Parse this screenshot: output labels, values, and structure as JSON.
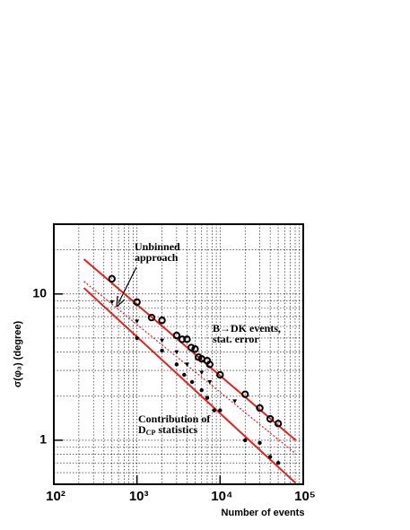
{
  "chart_data": {
    "type": "scatter",
    "x_label": "Number of events",
    "y_label": "σ(φ₃) (degree)",
    "log_x": true,
    "log_y": true,
    "grid": true,
    "xlim": [
      100,
      100000
    ],
    "ylim": [
      0.5,
      30
    ],
    "xticks": [
      {
        "value": 100,
        "label": "10²"
      },
      {
        "value": 1000,
        "label": "10³"
      },
      {
        "value": 10000,
        "label": "10⁴"
      },
      {
        "value": 100000,
        "label": "10⁵"
      }
    ],
    "yticks": [
      1,
      10
    ],
    "xminorticks": [
      200,
      300,
      400,
      500,
      600,
      700,
      800,
      900,
      2000,
      3000,
      4000,
      5000,
      6000,
      7000,
      8000,
      9000,
      20000,
      30000,
      40000,
      50000,
      60000,
      70000,
      80000,
      90000
    ],
    "yminorticks": [
      0.6,
      0.7,
      0.8,
      0.9,
      2,
      3,
      4,
      5,
      6,
      7,
      8,
      9,
      20
    ],
    "series": [
      {
        "marker": "none",
        "line": "solid",
        "color": "#e8201c",
        "x": [
          230,
          81000
        ],
        "values": [
          17.3,
          1.0
        ]
      },
      {
        "marker": "none",
        "line": "dotted",
        "color": "#e8201c",
        "x": [
          230,
          81000
        ],
        "values": [
          12.2,
          0.81
        ]
      },
      {
        "marker": "none",
        "line": "solid",
        "color": "#e8201c",
        "x": [
          230,
          81000
        ],
        "values": [
          11,
          0.51
        ]
      },
      {
        "marker": "open-circle",
        "color": "#000000",
        "x": [
          500,
          1000,
          1500,
          2000,
          3000,
          3500,
          4000,
          4500,
          5000,
          5500,
          6000,
          7000,
          7500,
          10000,
          20000,
          30000,
          40000,
          50000
        ],
        "values": [
          12.7,
          8.8,
          6.9,
          6.6,
          5.2,
          4.9,
          4.9,
          4.3,
          4.2,
          3.7,
          3.6,
          3.5,
          3.3,
          2.8,
          2.06,
          1.66,
          1.4,
          1.3
        ]
      },
      {
        "marker": "triangle",
        "color": "#000000",
        "x": [
          500,
          1000,
          2000,
          3000,
          4000,
          6000,
          7500,
          15000
        ],
        "values": [
          8.8,
          6.5,
          4.8,
          4.0,
          3.3,
          2.9,
          2.5,
          1.85
        ]
      },
      {
        "marker": "dot",
        "color": "#000000",
        "x": [
          1000,
          2000,
          3000,
          3700,
          4600,
          6000,
          7000,
          8500,
          10000,
          20000,
          30000,
          40000,
          50000
        ],
        "values": [
          5.0,
          4.1,
          3.3,
          2.8,
          2.5,
          2.2,
          1.95,
          1.6,
          1.6,
          1.0,
          0.96,
          0.77,
          0.7
        ]
      }
    ],
    "annotations": [
      {
        "lines": [
          [
            "Unbinned"
          ],
          [
            "approach"
          ]
        ]
      },
      {
        "lines": [
          [
            "B→DK events,"
          ],
          [
            "stat. error"
          ]
        ]
      },
      {
        "lines": [
          [
            "Contribution of"
          ],
          [
            "D",
            "CP",
            " statistics"
          ]
        ]
      }
    ]
  }
}
